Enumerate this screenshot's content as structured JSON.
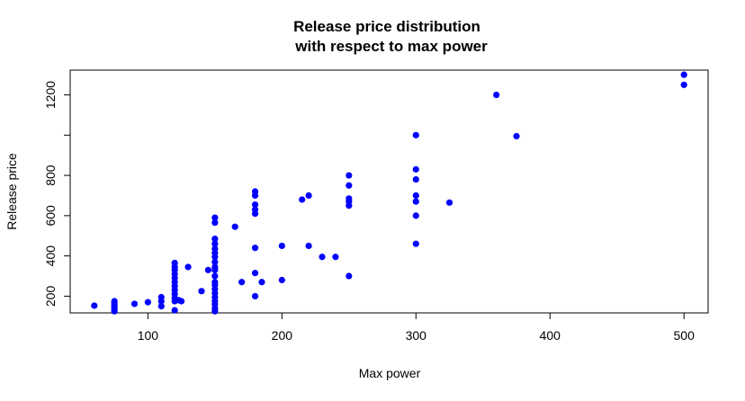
{
  "chart_data": {
    "type": "scatter",
    "title_line1": "Release price distribution",
    "title_line2": "with respect to max power",
    "xlabel": "Max power",
    "ylabel": "Release price",
    "xlim": [
      42,
      518
    ],
    "ylim": [
      117,
      1323
    ],
    "xticks": [
      100,
      200,
      300,
      400,
      500
    ],
    "yticks": [
      200,
      400,
      600,
      800,
      1000,
      1200
    ],
    "ytick_labels": [
      "200",
      "400",
      "600",
      "800",
      "",
      "1200"
    ],
    "point_color": "#0000ff",
    "grid": false,
    "legend": "none",
    "points": [
      {
        "x": 60,
        "y": 153
      },
      {
        "x": 75,
        "y": 125
      },
      {
        "x": 75,
        "y": 135
      },
      {
        "x": 75,
        "y": 145
      },
      {
        "x": 75,
        "y": 155
      },
      {
        "x": 75,
        "y": 165
      },
      {
        "x": 75,
        "y": 175
      },
      {
        "x": 90,
        "y": 162
      },
      {
        "x": 100,
        "y": 170
      },
      {
        "x": 110,
        "y": 150
      },
      {
        "x": 110,
        "y": 175
      },
      {
        "x": 110,
        "y": 195
      },
      {
        "x": 120,
        "y": 130
      },
      {
        "x": 120,
        "y": 175
      },
      {
        "x": 120,
        "y": 190
      },
      {
        "x": 120,
        "y": 210
      },
      {
        "x": 120,
        "y": 230
      },
      {
        "x": 120,
        "y": 250
      },
      {
        "x": 120,
        "y": 270
      },
      {
        "x": 120,
        "y": 290
      },
      {
        "x": 120,
        "y": 310
      },
      {
        "x": 120,
        "y": 330
      },
      {
        "x": 120,
        "y": 345
      },
      {
        "x": 120,
        "y": 365
      },
      {
        "x": 123,
        "y": 180
      },
      {
        "x": 125,
        "y": 175
      },
      {
        "x": 130,
        "y": 345
      },
      {
        "x": 140,
        "y": 225
      },
      {
        "x": 145,
        "y": 330
      },
      {
        "x": 150,
        "y": 125
      },
      {
        "x": 150,
        "y": 140
      },
      {
        "x": 150,
        "y": 160
      },
      {
        "x": 150,
        "y": 175
      },
      {
        "x": 150,
        "y": 195
      },
      {
        "x": 150,
        "y": 215
      },
      {
        "x": 150,
        "y": 235
      },
      {
        "x": 150,
        "y": 255
      },
      {
        "x": 150,
        "y": 270
      },
      {
        "x": 150,
        "y": 300
      },
      {
        "x": 150,
        "y": 330
      },
      {
        "x": 150,
        "y": 345
      },
      {
        "x": 150,
        "y": 370
      },
      {
        "x": 150,
        "y": 395
      },
      {
        "x": 150,
        "y": 415
      },
      {
        "x": 150,
        "y": 435
      },
      {
        "x": 150,
        "y": 460
      },
      {
        "x": 150,
        "y": 485
      },
      {
        "x": 150,
        "y": 565
      },
      {
        "x": 150,
        "y": 590
      },
      {
        "x": 165,
        "y": 545
      },
      {
        "x": 170,
        "y": 270
      },
      {
        "x": 180,
        "y": 200
      },
      {
        "x": 180,
        "y": 315
      },
      {
        "x": 180,
        "y": 440
      },
      {
        "x": 180,
        "y": 610
      },
      {
        "x": 180,
        "y": 630
      },
      {
        "x": 180,
        "y": 655
      },
      {
        "x": 180,
        "y": 700
      },
      {
        "x": 180,
        "y": 720
      },
      {
        "x": 185,
        "y": 270
      },
      {
        "x": 200,
        "y": 280
      },
      {
        "x": 200,
        "y": 450
      },
      {
        "x": 215,
        "y": 680
      },
      {
        "x": 220,
        "y": 450
      },
      {
        "x": 220,
        "y": 700
      },
      {
        "x": 230,
        "y": 395
      },
      {
        "x": 240,
        "y": 395
      },
      {
        "x": 250,
        "y": 300
      },
      {
        "x": 250,
        "y": 650
      },
      {
        "x": 250,
        "y": 670
      },
      {
        "x": 250,
        "y": 685
      },
      {
        "x": 250,
        "y": 750
      },
      {
        "x": 250,
        "y": 800
      },
      {
        "x": 300,
        "y": 460
      },
      {
        "x": 300,
        "y": 600
      },
      {
        "x": 300,
        "y": 670
      },
      {
        "x": 300,
        "y": 700
      },
      {
        "x": 300,
        "y": 780
      },
      {
        "x": 300,
        "y": 830
      },
      {
        "x": 300,
        "y": 1000
      },
      {
        "x": 325,
        "y": 665
      },
      {
        "x": 360,
        "y": 1200
      },
      {
        "x": 375,
        "y": 995
      },
      {
        "x": 500,
        "y": 1250
      },
      {
        "x": 500,
        "y": 1300
      }
    ]
  }
}
